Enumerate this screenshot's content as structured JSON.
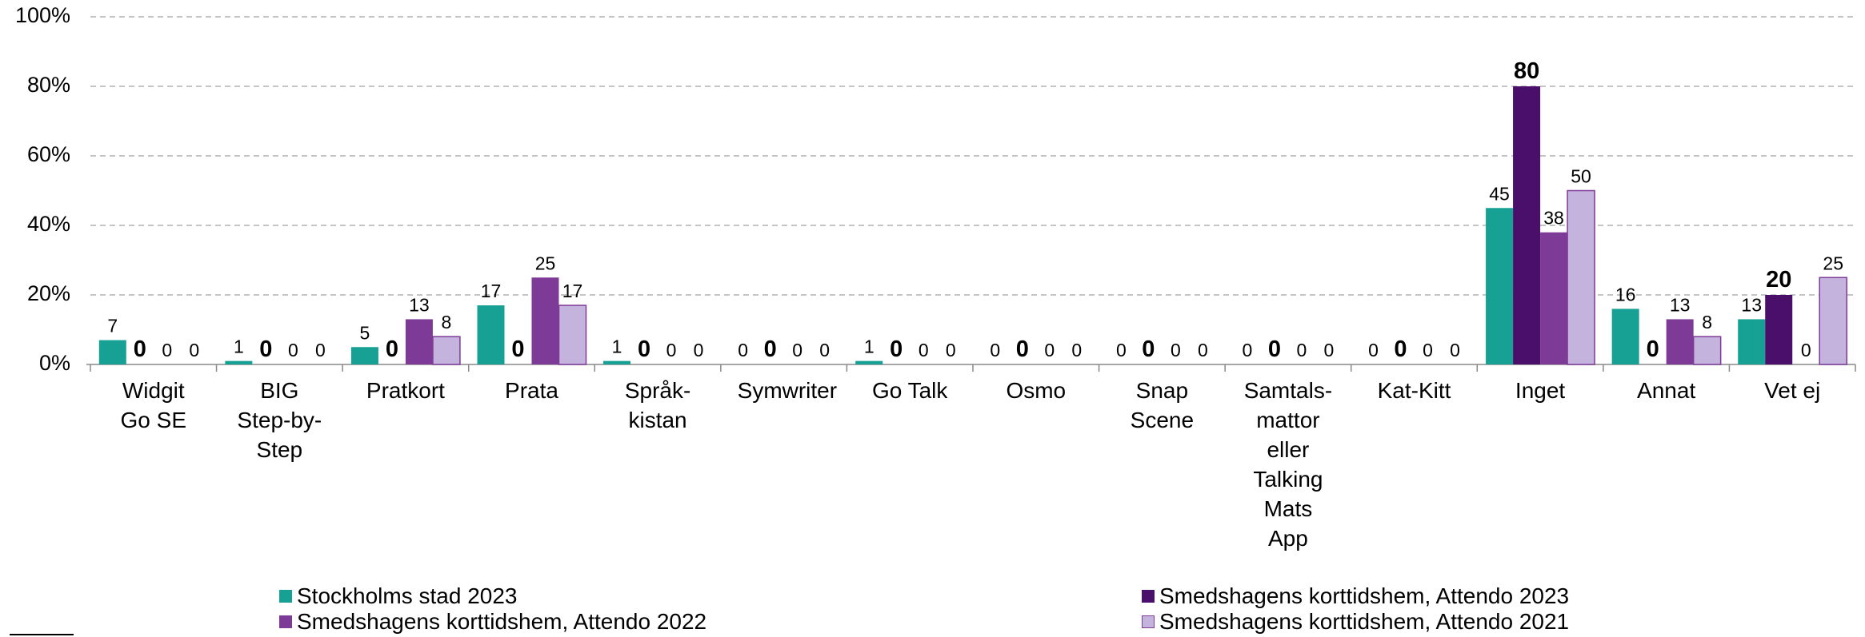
{
  "chart_data": {
    "type": "bar",
    "categories": [
      "Widgit Go SE",
      "BIG Step-by-Step",
      "Pratkort",
      "Prata",
      "Språk-kistan",
      "Symwriter",
      "Go Talk",
      "Osmo",
      "Snap Scene",
      "Samtals-mattor eller Talking Mats App",
      "Kat-Kitt",
      "Inget",
      "Annat",
      "Vet ej"
    ],
    "series": [
      {
        "name": "Stockholms stad 2023",
        "color": "#17a094",
        "values": [
          7,
          1,
          5,
          17,
          1,
          0,
          1,
          0,
          0,
          0,
          0,
          45,
          16,
          13
        ]
      },
      {
        "name": "Smedshagens korttidshem, Attendo 2023",
        "color": "#4a0e6b",
        "values": [
          0,
          0,
          0,
          0,
          0,
          0,
          0,
          0,
          0,
          0,
          0,
          80,
          0,
          20
        ]
      },
      {
        "name": "Smedshagens korttidshem, Attendo 2022",
        "color": "#7d3a97",
        "values": [
          0,
          0,
          13,
          25,
          0,
          0,
          0,
          0,
          0,
          0,
          0,
          38,
          13,
          0
        ]
      },
      {
        "name": "Smedshagens korttidshem, Attendo 2021",
        "color": "#c4b3dc",
        "values": [
          0,
          0,
          8,
          17,
          0,
          0,
          0,
          0,
          0,
          0,
          0,
          50,
          8,
          25
        ]
      }
    ],
    "ylim": [
      0,
      100
    ],
    "yticks": [
      {
        "value": 0,
        "label": "0%"
      },
      {
        "value": 20,
        "label": "20%"
      },
      {
        "value": 40,
        "label": "40%"
      },
      {
        "value": 60,
        "label": "60%"
      },
      {
        "value": 80,
        "label": "80%"
      },
      {
        "value": 100,
        "label": "100%"
      }
    ],
    "grid": true
  }
}
